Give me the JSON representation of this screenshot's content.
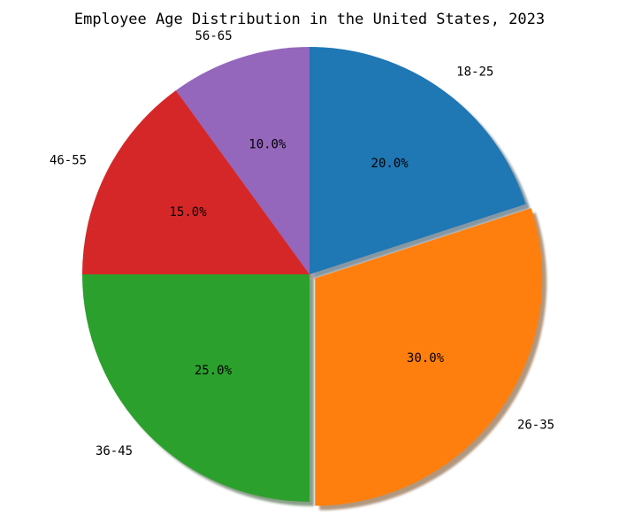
{
  "chart_data": {
    "type": "pie",
    "title": "Employee Age Distribution in the United States, 2023",
    "categories": [
      "18-25",
      "26-35",
      "36-45",
      "46-55",
      "56-65"
    ],
    "values": [
      20.0,
      30.0,
      25.0,
      15.0,
      10.0
    ],
    "percent_labels": [
      "20.0%",
      "30.0%",
      "25.0%",
      "15.0%",
      "10.0%"
    ],
    "colors": [
      "#1f77b4",
      "#ff7f0e",
      "#2ca02c",
      "#d62728",
      "#9467bd"
    ],
    "start_angle_deg": 90,
    "direction": "clockwise",
    "explode": [
      0,
      0.03,
      0,
      0,
      0
    ],
    "shadow": true,
    "legend": "none"
  }
}
